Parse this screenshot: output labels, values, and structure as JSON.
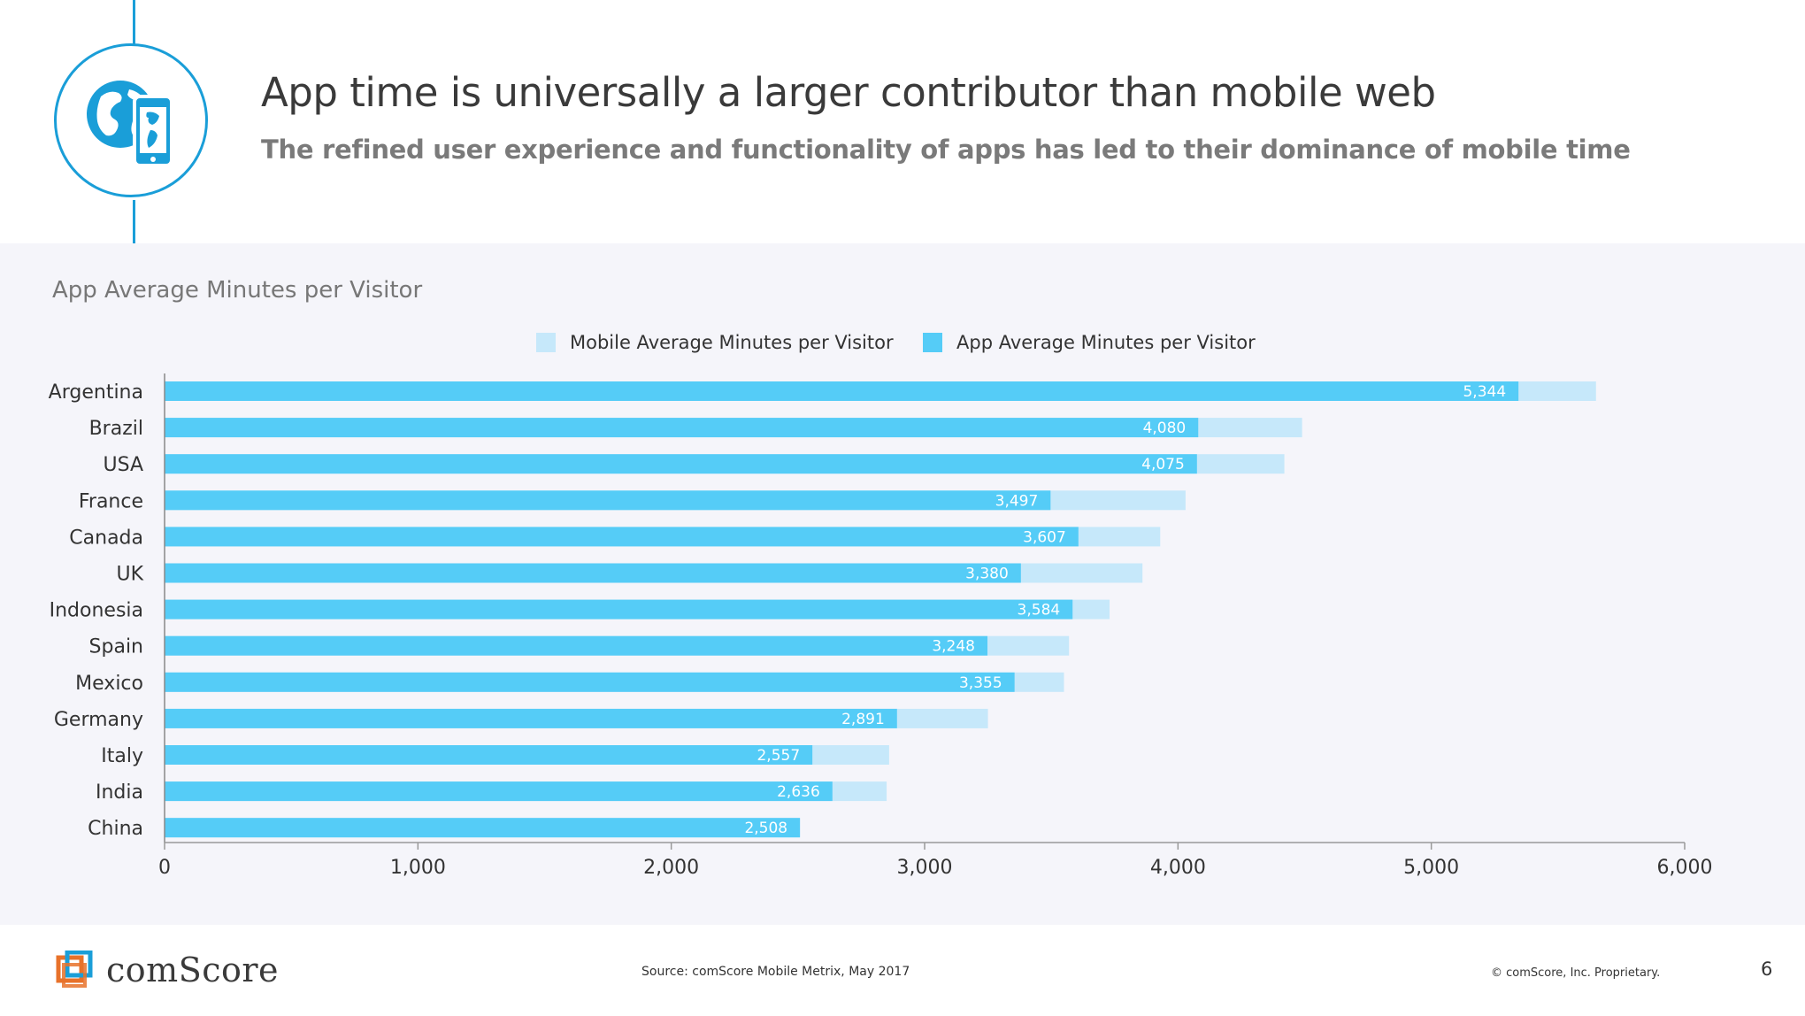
{
  "header": {
    "title": "App time is universally a larger contributor than mobile web",
    "subtitle": "The refined user experience and functionality of apps has led to their dominance of mobile time",
    "icon": "globe-phone-icon"
  },
  "colors": {
    "accent": "#1a9ed8",
    "app_bar": "#55ccf7",
    "mobile_bar": "#c6e8fa",
    "panel_bg": "#f5f5fa"
  },
  "chart_data": {
    "type": "bar",
    "orientation": "horizontal",
    "title": "App Average Minutes per Visitor",
    "categories": [
      "Argentina",
      "Brazil",
      "USA",
      "France",
      "Canada",
      "UK",
      "Indonesia",
      "Spain",
      "Mexico",
      "Germany",
      "Italy",
      "India",
      "China"
    ],
    "series": [
      {
        "name": "Mobile Average Minutes per Visitor",
        "values": [
          5650,
          4490,
          4420,
          4030,
          3930,
          3860,
          3730,
          3570,
          3550,
          3250,
          2860,
          2850,
          2508
        ],
        "color": "#c6e8fa"
      },
      {
        "name": "App Average Minutes per Visitor",
        "values": [
          5344,
          4080,
          4075,
          3497,
          3607,
          3380,
          3584,
          3248,
          3355,
          2891,
          2557,
          2636,
          2508
        ],
        "color": "#55ccf7"
      }
    ],
    "data_labels": [
      "5,344",
      "4,080",
      "4,075",
      "3,497",
      "3,607",
      "3,380",
      "3,584",
      "3,248",
      "3,355",
      "2,891",
      "2,557",
      "2,636",
      "2,508"
    ],
    "xlim": [
      0,
      6000
    ],
    "xticks": [
      "0",
      "1,000",
      "2,000",
      "3,000",
      "4,000",
      "5,000",
      "6,000"
    ],
    "legend_position": "top",
    "grid": false
  },
  "footer": {
    "source": "Source: comScore Mobile Metrix, May 2017",
    "copyright": "© comScore, Inc. Proprietary.",
    "page_number": "6",
    "logo_text": "comScore",
    "logo_icon": "comscore-logo-icon"
  }
}
